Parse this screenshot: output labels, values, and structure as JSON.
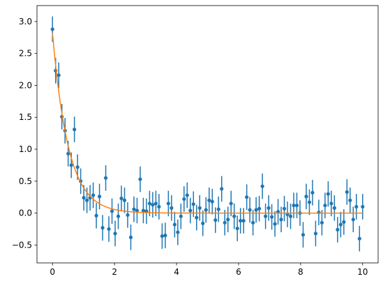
{
  "chart_data": {
    "type": "scatter",
    "title": "",
    "xlabel": "",
    "ylabel": "",
    "xlim": [
      -0.5,
      10.5
    ],
    "ylim": [
      -0.78,
      3.25
    ],
    "xticks": [
      0,
      2,
      4,
      6,
      8,
      10
    ],
    "xtick_labels": [
      "0",
      "2",
      "4",
      "6",
      "8",
      "10"
    ],
    "yticks": [
      -0.5,
      0.0,
      0.5,
      1.0,
      1.5,
      2.0,
      2.5,
      3.0
    ],
    "ytick_labels": [
      "−0.5",
      "0.0",
      "0.5",
      "1.0",
      "1.5",
      "2.0",
      "2.5",
      "3.0"
    ],
    "grid": false,
    "legend": false,
    "series": [
      {
        "kind": "errorbar",
        "color": "#1f77b4",
        "yerr": 0.2,
        "x": [
          0.0,
          0.101,
          0.202,
          0.303,
          0.404,
          0.505,
          0.606,
          0.707,
          0.808,
          0.909,
          1.01,
          1.111,
          1.212,
          1.313,
          1.414,
          1.515,
          1.616,
          1.717,
          1.818,
          1.919,
          2.02,
          2.121,
          2.222,
          2.323,
          2.424,
          2.525,
          2.626,
          2.727,
          2.828,
          2.929,
          3.03,
          3.131,
          3.232,
          3.333,
          3.434,
          3.535,
          3.636,
          3.737,
          3.838,
          3.939,
          4.04,
          4.141,
          4.242,
          4.343,
          4.444,
          4.545,
          4.646,
          4.747,
          4.848,
          4.949,
          5.051,
          5.152,
          5.253,
          5.354,
          5.455,
          5.556,
          5.657,
          5.758,
          5.859,
          5.96,
          6.061,
          6.162,
          6.263,
          6.364,
          6.465,
          6.566,
          6.667,
          6.768,
          6.869,
          6.97,
          7.071,
          7.172,
          7.273,
          7.374,
          7.475,
          7.576,
          7.677,
          7.778,
          7.879,
          7.98,
          8.081,
          8.182,
          8.283,
          8.384,
          8.485,
          8.586,
          8.687,
          8.788,
          8.889,
          8.99,
          9.091,
          9.192,
          9.293,
          9.394,
          9.495,
          9.596,
          9.697,
          9.798,
          9.899,
          10.0
        ],
        "y": [
          2.88,
          2.23,
          2.16,
          1.51,
          1.29,
          0.93,
          0.75,
          1.31,
          0.72,
          0.5,
          0.24,
          0.2,
          0.24,
          0.28,
          -0.04,
          0.26,
          -0.23,
          0.55,
          -0.25,
          0.03,
          -0.32,
          -0.05,
          0.23,
          0.2,
          -0.03,
          -0.38,
          0.06,
          0.04,
          0.53,
          0.04,
          0.03,
          0.15,
          0.13,
          0.15,
          0.1,
          -0.36,
          -0.35,
          0.15,
          0.08,
          -0.18,
          -0.3,
          -0.05,
          0.22,
          0.28,
          0.04,
          0.14,
          -0.07,
          0.08,
          -0.16,
          0.05,
          0.2,
          0.18,
          -0.11,
          0.06,
          0.38,
          -0.15,
          -0.1,
          0.15,
          -0.05,
          -0.24,
          -0.12,
          -0.12,
          0.25,
          0.05,
          -0.15,
          0.05,
          0.07,
          0.42,
          -0.05,
          0.08,
          -0.06,
          -0.17,
          0.02,
          -0.1,
          0.07,
          -0.02,
          -0.05,
          0.12,
          0.12,
          0.0,
          -0.34,
          0.26,
          0.17,
          0.32,
          -0.32,
          0.01,
          -0.15,
          0.12,
          0.3,
          0.15,
          0.08,
          -0.26,
          -0.18,
          -0.14,
          0.33,
          0.2,
          -0.1,
          0.1,
          -0.4,
          0.1
        ]
      },
      {
        "kind": "line",
        "color": "#ff7f0e",
        "model": "y = a * exp(-b * x)",
        "a": 2.82,
        "b": 1.95
      }
    ]
  }
}
